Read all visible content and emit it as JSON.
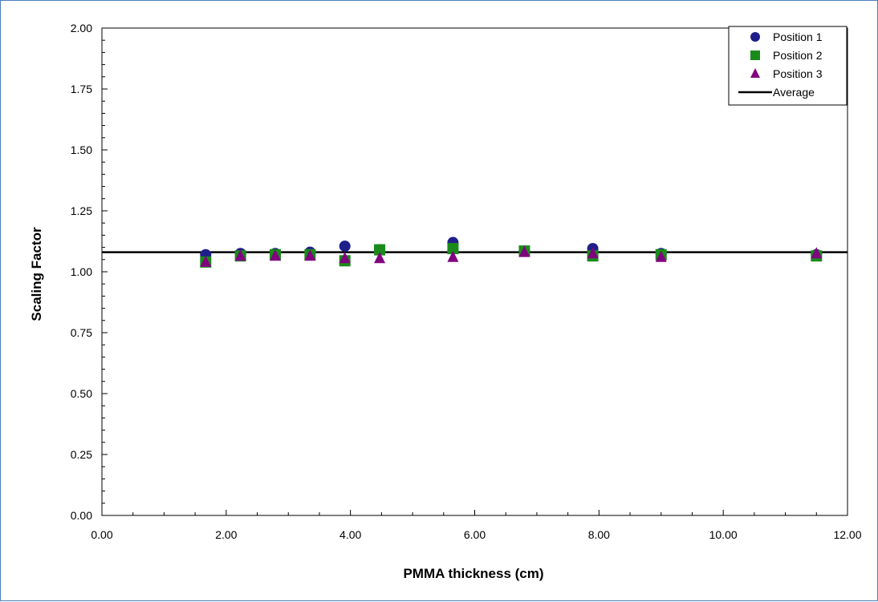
{
  "chart_data": {
    "type": "scatter",
    "title": "",
    "xlabel": "PMMA thickness (cm)",
    "ylabel": "Scaling Factor",
    "xlim": [
      0,
      12
    ],
    "ylim": [
      0,
      2
    ],
    "x_ticks": [
      "0.00",
      "2.00",
      "4.00",
      "6.00",
      "8.00",
      "10.00",
      "12.00"
    ],
    "y_ticks": [
      "0.00",
      "0.25",
      "0.50",
      "0.75",
      "1.00",
      "1.25",
      "1.50",
      "1.75",
      "2.00"
    ],
    "grid": false,
    "legend_position": "top-right",
    "series": [
      {
        "name": "Position 1",
        "marker": "circle",
        "color": "#1f1f8a",
        "points": [
          [
            1.67,
            1.07
          ],
          [
            2.23,
            1.075
          ],
          [
            2.79,
            1.075
          ],
          [
            3.35,
            1.08
          ],
          [
            3.91,
            1.105
          ],
          [
            4.47,
            1.09
          ],
          [
            5.65,
            1.12
          ],
          [
            6.8,
            1.085
          ],
          [
            7.9,
            1.095
          ],
          [
            9.0,
            1.075
          ],
          [
            11.5,
            1.07
          ]
        ]
      },
      {
        "name": "Position 2",
        "marker": "square",
        "color": "#1a8a1a",
        "points": [
          [
            1.67,
            1.04
          ],
          [
            2.23,
            1.065
          ],
          [
            2.79,
            1.07
          ],
          [
            3.35,
            1.07
          ],
          [
            3.91,
            1.045
          ],
          [
            4.47,
            1.09
          ],
          [
            5.65,
            1.095
          ],
          [
            6.8,
            1.085
          ],
          [
            7.9,
            1.065
          ],
          [
            9.0,
            1.07
          ],
          [
            11.5,
            1.065
          ]
        ]
      },
      {
        "name": "Position 3",
        "marker": "triangle",
        "color": "#800080",
        "points": [
          [
            1.67,
            1.04
          ],
          [
            2.23,
            1.065
          ],
          [
            2.79,
            1.065
          ],
          [
            3.35,
            1.065
          ],
          [
            3.91,
            1.055
          ],
          [
            4.47,
            1.055
          ],
          [
            5.65,
            1.06
          ],
          [
            6.8,
            1.08
          ],
          [
            7.9,
            1.075
          ],
          [
            9.0,
            1.06
          ],
          [
            11.5,
            1.075
          ]
        ]
      }
    ],
    "average": {
      "name": "Average",
      "value": 1.08,
      "color": "#000000"
    }
  }
}
